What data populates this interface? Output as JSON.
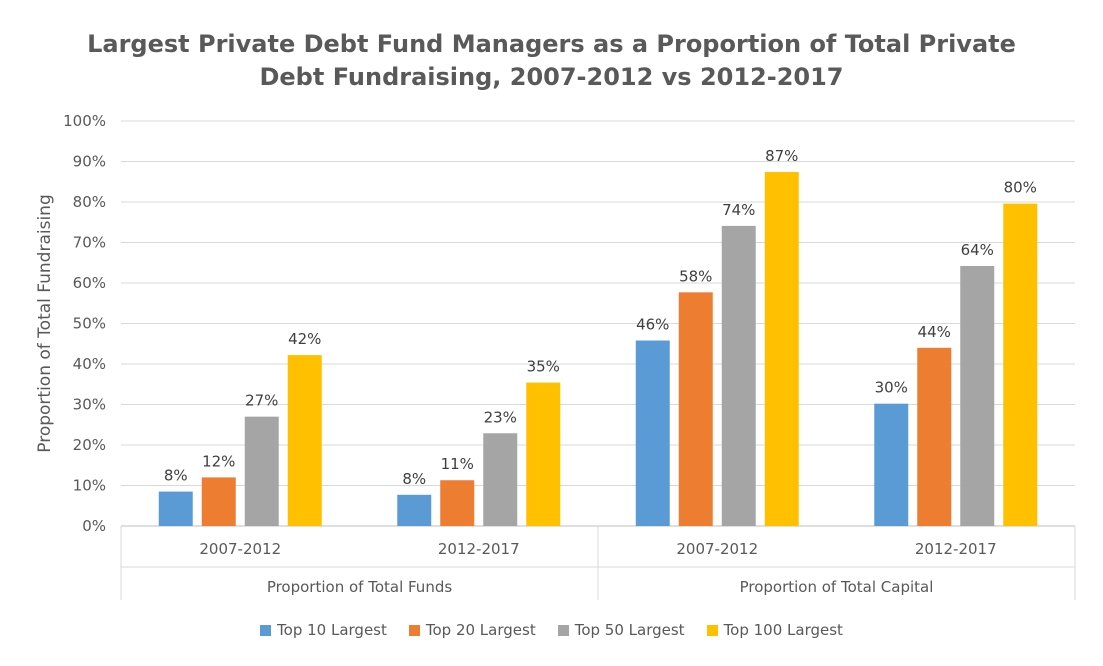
{
  "chart_data": {
    "type": "bar",
    "title_lines": [
      "Largest Private Debt Fund Managers as a Proportion of Total Private",
      "Debt Fundraising, 2007-2012 vs 2012-2017"
    ],
    "ylabel": "Proportion of Total Fundraising",
    "ylim": [
      0,
      100
    ],
    "yticks": [
      "0%",
      "10%",
      "20%",
      "30%",
      "40%",
      "50%",
      "60%",
      "70%",
      "80%",
      "90%",
      "100%"
    ],
    "groups": [
      {
        "label": "Proportion of Total Funds",
        "categories": [
          "2007-2012",
          "2012-2017"
        ]
      },
      {
        "label": "Proportion of Total Capital",
        "categories": [
          "2007-2012",
          "2012-2017"
        ]
      }
    ],
    "categories": [
      "Proportion of Total Funds / 2007-2012",
      "Proportion of Total Funds / 2012-2017",
      "Proportion of Total Capital / 2007-2012",
      "Proportion of Total Capital / 2012-2017"
    ],
    "series": [
      {
        "name": "Top 10 Largest",
        "color": "#5B9BD5",
        "values": [
          8.5,
          7.7,
          45.8,
          30.2
        ],
        "labels": [
          "8%",
          "8%",
          "46%",
          "30%"
        ]
      },
      {
        "name": "Top 20 Largest",
        "color": "#ED7D31",
        "values": [
          12.0,
          11.3,
          57.7,
          44.0
        ],
        "labels": [
          "12%",
          "11%",
          "58%",
          "44%"
        ]
      },
      {
        "name": "Top 50 Largest",
        "color": "#A5A5A5",
        "values": [
          27.0,
          22.9,
          74.1,
          64.2
        ],
        "labels": [
          "27%",
          "23%",
          "74%",
          "64%"
        ]
      },
      {
        "name": "Top 100 Largest",
        "color": "#FFC000",
        "values": [
          42.2,
          35.4,
          87.4,
          79.6
        ],
        "labels": [
          "42%",
          "35%",
          "87%",
          "80%"
        ]
      }
    ],
    "grid": true,
    "legend_position": "bottom"
  }
}
